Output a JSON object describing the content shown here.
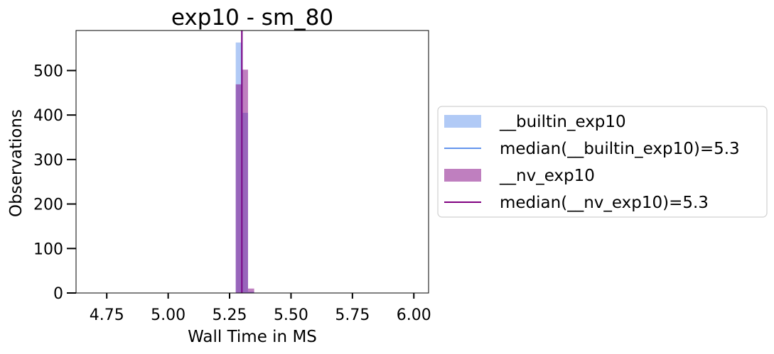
{
  "chart_data": {
    "type": "bar",
    "title": "exp10 - sm_80",
    "xlabel": "Wall Time in MS",
    "ylabel": "Observations",
    "xlim": [
      4.625,
      6.06
    ],
    "ylim": [
      0,
      590
    ],
    "xticks": [
      4.75,
      5.0,
      5.25,
      5.5,
      5.75,
      6.0
    ],
    "xtick_labels": [
      "4.75",
      "5.00",
      "5.25",
      "5.50",
      "5.75",
      "6.00"
    ],
    "yticks": [
      0,
      100,
      200,
      300,
      400,
      500
    ],
    "ytick_labels": [
      "0",
      "100",
      "200",
      "300",
      "400",
      "500"
    ],
    "grid": false,
    "legend_position": "outside-right",
    "series": [
      {
        "name": "__builtin_exp10",
        "kind": "histogram",
        "color": "#6495ed",
        "opacity": 0.5,
        "bin_width": 0.025,
        "bins": [
          {
            "x0": 5.275,
            "x1": 5.3,
            "count": 563
          },
          {
            "x0": 5.3,
            "x1": 5.325,
            "count": 405
          },
          {
            "x0": 5.325,
            "x1": 5.35,
            "count": 3
          }
        ]
      },
      {
        "name": "__nv_exp10",
        "kind": "histogram",
        "color": "#800080",
        "opacity": 0.5,
        "bin_width": 0.025,
        "bins": [
          {
            "x0": 5.275,
            "x1": 5.3,
            "count": 469
          },
          {
            "x0": 5.3,
            "x1": 5.325,
            "count": 502
          },
          {
            "x0": 5.325,
            "x1": 5.35,
            "count": 10
          }
        ]
      }
    ],
    "median_lines": [
      {
        "name": "median(__builtin_exp10)=5.3",
        "value": 5.3,
        "color": "#6495ed"
      },
      {
        "name": "median(__nv_exp10)=5.3",
        "value": 5.3,
        "color": "#800080"
      }
    ],
    "legend": [
      {
        "label": "__builtin_exp10",
        "marker": "patch",
        "color": "#6495ed",
        "opacity": 0.5
      },
      {
        "label": "median(__builtin_exp10)=5.3",
        "marker": "line",
        "color": "#6495ed",
        "opacity": 1
      },
      {
        "label": "__nv_exp10",
        "marker": "patch",
        "color": "#800080",
        "opacity": 0.5
      },
      {
        "label": "median(__nv_exp10)=5.3",
        "marker": "line",
        "color": "#800080",
        "opacity": 1
      }
    ]
  }
}
